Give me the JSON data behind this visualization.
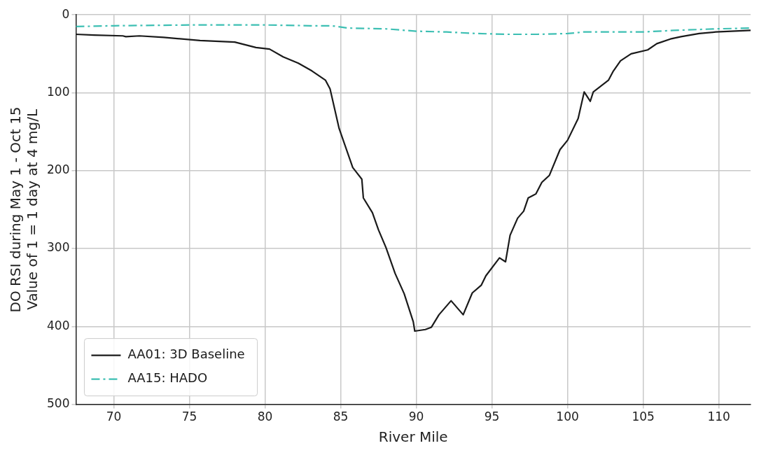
{
  "chart_data": {
    "type": "line",
    "xlabel": "River Mile",
    "ylabel": "DO RSI during May 1 - Oct 15\nValue of 1 = 1 day at 4 mg/L",
    "xlim": [
      67.5,
      112.1
    ],
    "xticks": [
      70,
      75,
      80,
      85,
      90,
      95,
      100,
      105,
      110
    ],
    "ylim": [
      500,
      0
    ],
    "yticks": [
      0,
      100,
      200,
      300,
      400,
      500
    ],
    "grid": true,
    "legend": "bottom left",
    "marker": "none",
    "series": [
      {
        "name": "AA01: 3D Baseline",
        "color": "#1a1a1a",
        "line_style": "solid",
        "x": [
          67.5,
          68.7,
          70.6,
          70.8,
          71.7,
          73.3,
          75.7,
          78,
          79.4,
          80.3,
          81.2,
          82.2,
          83.1,
          84,
          84.3,
          84.9,
          85.8,
          86.4,
          86.5,
          87.1,
          87.5,
          88,
          88.6,
          89.2,
          89.8,
          89.9,
          90.6,
          91.0,
          91.5,
          92.3,
          93.1,
          93.7,
          94.3,
          94.6,
          95.5,
          95.9,
          96.2,
          96.7,
          97.1,
          97.4,
          97.9,
          98.3,
          98.8,
          99.5,
          100,
          100.7,
          101.1,
          101.5,
          101.7,
          102.7,
          103,
          103.5,
          104.2,
          105.3,
          105.9,
          106.8,
          107.5,
          108.7,
          109.8,
          112.1
        ],
        "values": [
          25,
          26,
          27,
          28,
          27,
          29,
          33,
          35,
          42,
          44,
          54,
          62,
          72,
          84,
          95,
          146,
          196,
          211,
          235,
          254,
          276,
          299,
          332,
          358,
          394,
          406,
          404,
          401,
          385,
          367,
          385,
          357,
          347,
          335,
          312,
          317,
          283,
          261,
          252,
          235,
          230,
          215,
          206,
          173,
          161,
          133,
          99,
          111,
          99,
          84,
          73,
          59,
          50,
          45,
          37,
          31,
          28,
          24,
          22,
          20
        ]
      },
      {
        "name": "AA15: HADO",
        "color": "#3dbfb3",
        "line_style": "dashed",
        "x": [
          67.5,
          70,
          75,
          80,
          83,
          84.4,
          85.5,
          88,
          90,
          92,
          94,
          96,
          98,
          100,
          100.6,
          101,
          103,
          105,
          107,
          109.8,
          112.1
        ],
        "values": [
          15,
          14,
          13,
          13,
          14,
          14,
          17,
          18,
          21,
          22,
          24,
          25,
          25,
          24,
          23,
          22,
          22,
          22,
          20,
          18,
          17
        ]
      }
    ]
  }
}
